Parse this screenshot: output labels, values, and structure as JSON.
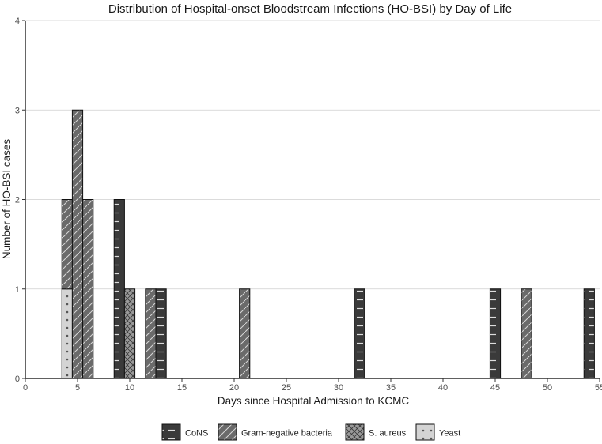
{
  "chart_data": {
    "type": "bar",
    "stacked": true,
    "title": "Distribution of Hospital-onset Bloodstream Infections (HO-BSI) by Day of Life",
    "xlabel": "Days since Hospital Admission to KCMC",
    "ylabel": "Number of HO-BSI cases",
    "xlim": [
      0,
      55
    ],
    "ylim": [
      0,
      4
    ],
    "xticks": [
      0,
      5,
      10,
      15,
      20,
      25,
      30,
      35,
      40,
      45,
      50,
      55
    ],
    "yticks": [
      0,
      1,
      2,
      3,
      4
    ],
    "grid": "horizontal",
    "legend_position": "bottom",
    "series": [
      {
        "name": "CoNS",
        "pattern": "dash",
        "color": "#3a3a3a",
        "points": [
          {
            "x": 9,
            "y": 2
          },
          {
            "x": 13,
            "y": 1
          },
          {
            "x": 32,
            "y": 1
          },
          {
            "x": 45,
            "y": 1
          },
          {
            "x": 54,
            "y": 1
          }
        ]
      },
      {
        "name": "Gram-negative bacteria",
        "pattern": "diagonal",
        "color": "#6a6a6a",
        "points": [
          {
            "x": 4,
            "y": 1
          },
          {
            "x": 5,
            "y": 3
          },
          {
            "x": 6,
            "y": 2
          },
          {
            "x": 12,
            "y": 1
          },
          {
            "x": 21,
            "y": 1
          },
          {
            "x": 48,
            "y": 1
          }
        ]
      },
      {
        "name": "S. aureus",
        "pattern": "crosshatch",
        "color": "#9a9a9a",
        "points": [
          {
            "x": 10,
            "y": 1
          }
        ]
      },
      {
        "name": "Yeast",
        "pattern": "dots",
        "color": "#d4d4d4",
        "points": [
          {
            "x": 4,
            "y": 1
          }
        ]
      }
    ]
  }
}
